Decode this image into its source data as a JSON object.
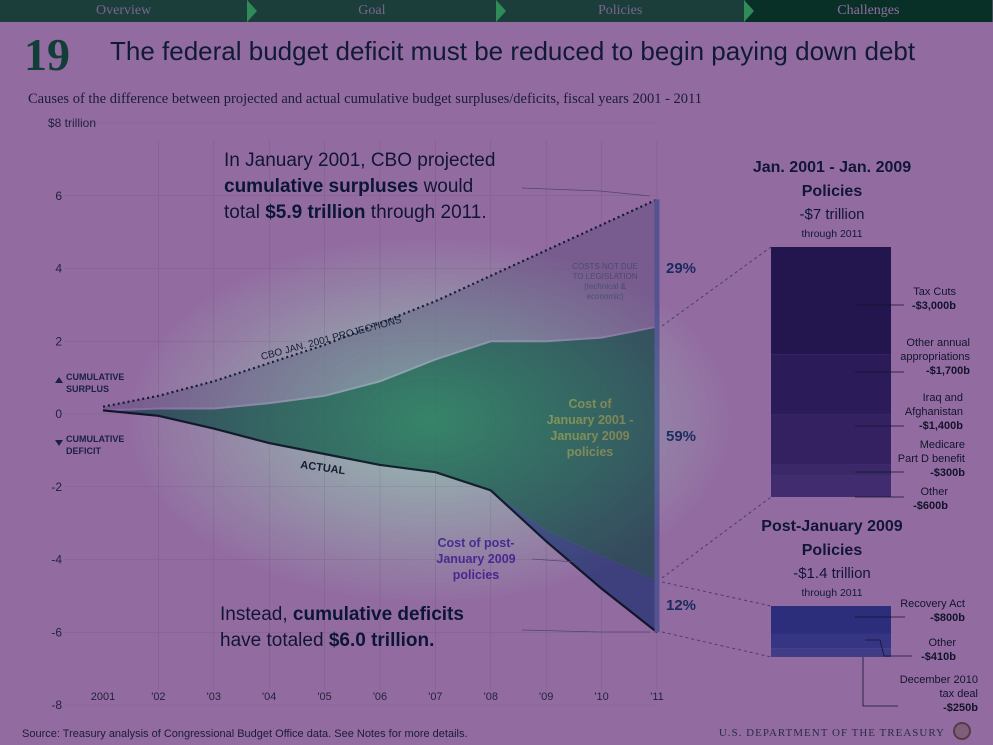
{
  "nav": {
    "tabs": [
      "Overview",
      "Goal",
      "Policies",
      "Challenges"
    ],
    "active_index": 3
  },
  "header": {
    "number": "19",
    "title": "The federal budget deficit must be reduced to begin paying down debt",
    "subtitle": "Causes of the difference between projected and actual cumulative budget surpluses/deficits, fiscal years 2001 - 2011"
  },
  "chart_data": {
    "type": "area",
    "x_ticks": [
      "2001",
      "'02",
      "'03",
      "'04",
      "'05",
      "'06",
      "'07",
      "'08",
      "'09",
      "'10",
      "'11"
    ],
    "y_ticks": [
      "$8 trillion",
      "6",
      "4",
      "2",
      "0",
      "-2",
      "-4",
      "-6",
      "-8"
    ],
    "ylim": [
      -8,
      8
    ],
    "y_side_labels": {
      "surplus": [
        "CUMULATIVE",
        "SURPLUS"
      ],
      "deficit": [
        "CUMULATIVE",
        "DEFICIT"
      ]
    },
    "series": [
      {
        "name": "CBO JAN. 2001 PROJECTIONS",
        "x": [
          2001,
          2002,
          2003,
          2004,
          2005,
          2006,
          2007,
          2008,
          2009,
          2010,
          2011
        ],
        "values": [
          0.2,
          0.5,
          0.9,
          1.4,
          1.9,
          2.5,
          3.1,
          3.8,
          4.5,
          5.2,
          5.9
        ]
      },
      {
        "name": "",
        "x": [
          2001,
          2002,
          2003,
          2004,
          2005,
          2006,
          2007,
          2008,
          2009,
          2010,
          2011
        ],
        "values": [
          0.1,
          0.15,
          0.15,
          0.3,
          0.5,
          0.9,
          1.5,
          2.0,
          2.0,
          2.1,
          2.4
        ]
      },
      {
        "name": "",
        "x": [
          2001,
          2002,
          2003,
          2004,
          2005,
          2006,
          2007,
          2008,
          2009,
          2010,
          2011
        ],
        "values": [
          0.1,
          -0.05,
          -0.4,
          -0.8,
          -1.1,
          -1.4,
          -1.6,
          -2.1,
          -3.2,
          -3.9,
          -4.6
        ]
      },
      {
        "name": "ACTUAL",
        "x": [
          2001,
          2002,
          2003,
          2004,
          2005,
          2006,
          2007,
          2008,
          2009,
          2010,
          2011
        ],
        "values": [
          0.1,
          -0.05,
          -0.4,
          -0.8,
          -1.1,
          -1.4,
          -1.6,
          -2.1,
          -3.5,
          -4.8,
          -6.0
        ]
      }
    ],
    "band_labels": {
      "costs_not_due": [
        "COSTS NOT DUE",
        "TO LEGISLATION",
        "(technical &",
        "economic)"
      ],
      "jan2001_policies": [
        "Cost of",
        "January 2001 -",
        "January 2009",
        "policies"
      ],
      "post2009_policies": [
        "Cost of post-",
        "January 2009",
        "policies"
      ]
    },
    "percentages": [
      "29%",
      "59%",
      "12%"
    ],
    "annotations": {
      "projected": {
        "l1": "In January 2001, CBO projected",
        "l2a": "cumulative surpluses",
        "l2b": " would",
        "l3a": "total ",
        "l3b": "$5.9 trillion",
        "l3c": " through 2011."
      },
      "actual": {
        "l1a": "Instead, ",
        "l1b": "cumulative deficits",
        "l2a": "have totaled ",
        "l2b": "$6.0 trillion."
      }
    },
    "panel_1": {
      "heading": [
        "Jan. 2001 - Jan. 2009",
        "Policies"
      ],
      "total": "-$7 trillion",
      "through": "through 2011",
      "segments": [
        {
          "name": [
            "Tax Cuts"
          ],
          "value": "-$3,000b",
          "amount": 3000,
          "color": "#3b2f74"
        },
        {
          "name": [
            "Other annual",
            "appropriations"
          ],
          "value": "-$1,700b",
          "amount": 1700,
          "color": "#4a3d84"
        },
        {
          "name": [
            "Iraq and",
            "Afghanistan"
          ],
          "value": "-$1,400b",
          "amount": 1400,
          "color": "#554a90"
        },
        {
          "name": [
            "Medicare",
            "Part D benefit"
          ],
          "value": "-$300b",
          "amount": 300,
          "color": "#61599c"
        },
        {
          "name": [
            "Other"
          ],
          "value": "-$600b",
          "amount": 600,
          "color": "#6b64a6"
        }
      ]
    },
    "panel_2": {
      "heading": [
        "Post-January 2009",
        "Policies"
      ],
      "total": "-$1.4 trillion",
      "through": "through 2011",
      "segments": [
        {
          "name": [
            "Recovery Act"
          ],
          "value": "-$800b",
          "amount": 800,
          "color": "#4a65b8"
        },
        {
          "name": [
            "Other"
          ],
          "value": "-$410b",
          "amount": 410,
          "color": "#5a78c4"
        },
        {
          "name": [
            "December 2010",
            "tax deal"
          ],
          "value": "-$250b",
          "amount": 250,
          "color": "#6b86c8"
        }
      ]
    }
  },
  "footer": {
    "source": "Source: Treasury analysis of Congressional Budget Office data. See Notes for more details.",
    "agency": "U.S. DEPARTMENT OF THE TREASURY"
  }
}
